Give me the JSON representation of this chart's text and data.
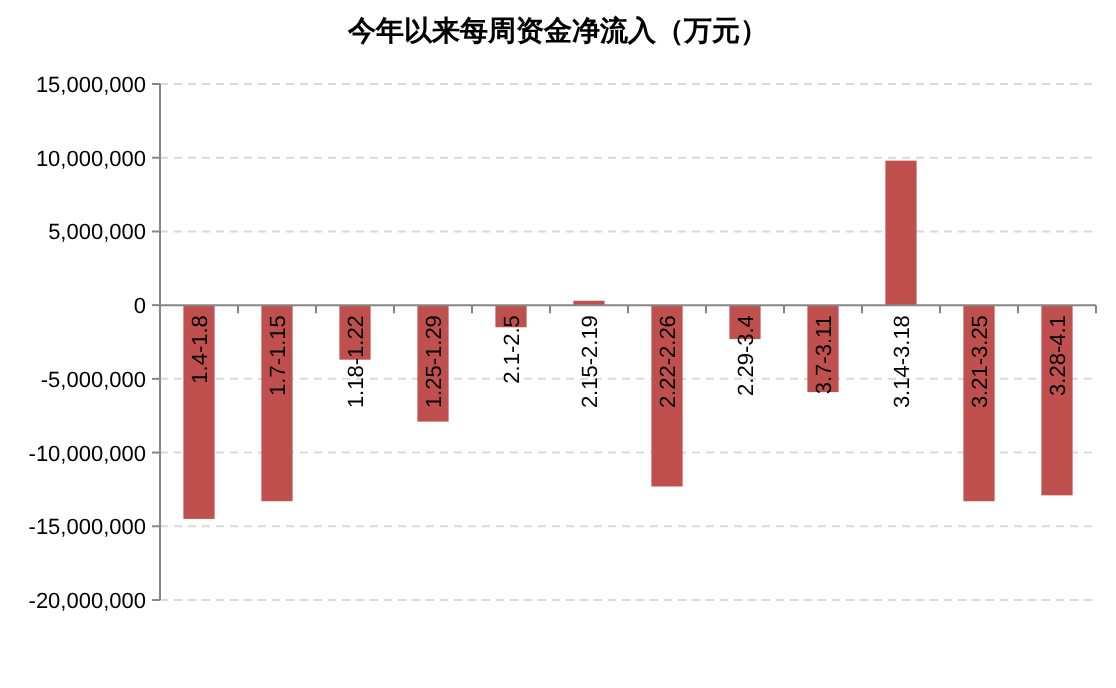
{
  "chart_data": {
    "type": "bar",
    "title": "今年以来每周资金净流入（万元）",
    "categories": [
      "1.4-1.8",
      "1.7-1.15",
      "1.18-1.22",
      "1.25-1.29",
      "2.1-2.5",
      "2.15-2.19",
      "2.22-2.26",
      "2.29-3.4",
      "3.7-3.11",
      "3.14-3.18",
      "3.21-3.25",
      "3.28-4.1"
    ],
    "values": [
      -14500000,
      -13300000,
      -3700000,
      -7900000,
      -1500000,
      300000,
      -12300000,
      -2300000,
      -5900000,
      9800000,
      -13300000,
      -12900000
    ],
    "color": "#c0504d",
    "ylim": [
      -20000000,
      15000000
    ],
    "yticks": [
      {
        "value": -20000000,
        "label": "-20,000,000"
      },
      {
        "value": -15000000,
        "label": "-15,000,000"
      },
      {
        "value": -10000000,
        "label": "-10,000,000"
      },
      {
        "value": -5000000,
        "label": "-5,000,000"
      },
      {
        "value": 0,
        "label": "0"
      },
      {
        "value": 5000000,
        "label": "5,000,000"
      },
      {
        "value": 10000000,
        "label": "10,000,000"
      },
      {
        "value": 15000000,
        "label": "15,000,000"
      }
    ],
    "grid": "y"
  }
}
